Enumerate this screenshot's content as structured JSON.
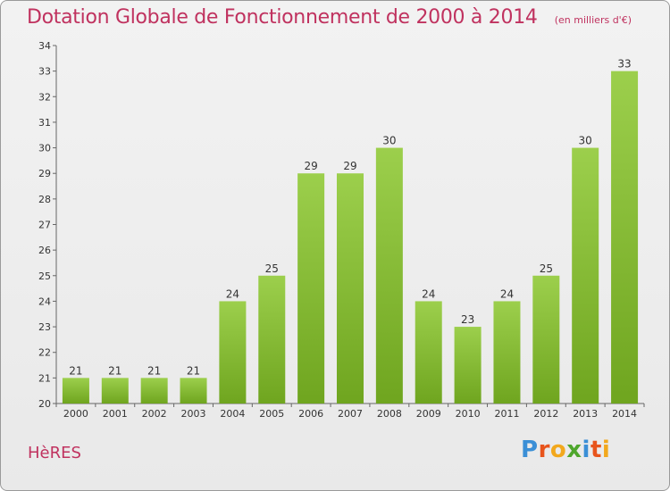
{
  "header": {
    "title": "Dotation Globale de Fonctionnement de 2000 à 2014",
    "subtitle": "(en milliers d'€)"
  },
  "footer": {
    "commune": "HèRES",
    "brand": [
      "P",
      "r",
      "o",
      "x",
      "i",
      "t",
      "i"
    ],
    "brand_colors": [
      "#3b8fd6",
      "#e8541c",
      "#f2a81d",
      "#4ea62c",
      "#3b8fd6",
      "#e8541c",
      "#f2a81d"
    ]
  },
  "chart_data": {
    "type": "bar",
    "categories": [
      "2000",
      "2001",
      "2002",
      "2003",
      "2004",
      "2005",
      "2006",
      "2007",
      "2008",
      "2009",
      "2010",
      "2011",
      "2012",
      "2013",
      "2014"
    ],
    "values": [
      21,
      21,
      21,
      21,
      24,
      25,
      29,
      29,
      30,
      24,
      23,
      24,
      25,
      30,
      33
    ],
    "ylim": [
      20,
      34
    ],
    "yticks": [
      20,
      21,
      22,
      23,
      24,
      25,
      26,
      27,
      28,
      29,
      30,
      31,
      32,
      33,
      34
    ],
    "xlabel": "",
    "ylabel": "",
    "grid": false,
    "bar_color_top": "#9ccf4c",
    "bar_color_bottom": "#6fa51f"
  }
}
